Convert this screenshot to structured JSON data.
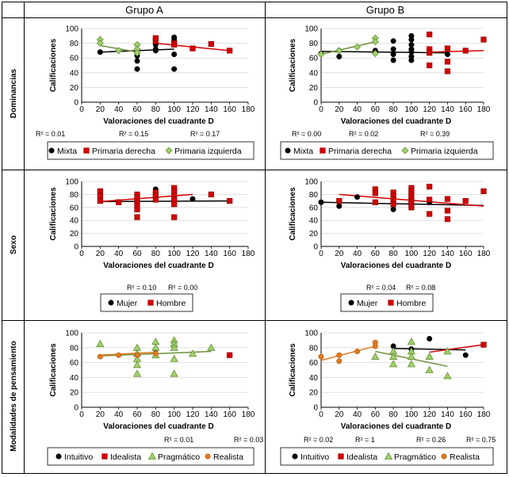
{
  "table": {
    "col_headers": [
      "Grupo A",
      "Grupo B"
    ],
    "row_labels": [
      "Dominancias",
      "Sexo",
      "Modalidades de pensamiento"
    ]
  },
  "colors": {
    "black": "#000000",
    "red": "#d40000",
    "green": "#9fd06b",
    "olive": "#7a9a2a",
    "orange": "#e07a1f"
  },
  "chart_data": [
    {
      "id": "dom_a",
      "type": "scatter",
      "xlabel": "Valoraciones del cuadrante D",
      "ylabel": "Calificaciones",
      "xlim": [
        0,
        180
      ],
      "ylim": [
        0,
        100
      ],
      "xticks": [
        0,
        20,
        40,
        60,
        80,
        100,
        120,
        140,
        160,
        180
      ],
      "yticks": [
        0,
        20,
        40,
        60,
        80,
        100
      ],
      "r2": [
        "R² = 0.01",
        "R² = 0.15",
        "R² = 0.17"
      ],
      "series": [
        {
          "name": "Mixta",
          "marker": "circle",
          "color": "#000000",
          "points": [
            [
              20,
              68
            ],
            [
              60,
              63
            ],
            [
              60,
              56
            ],
            [
              60,
              45
            ],
            [
              80,
              72
            ],
            [
              80,
              70
            ],
            [
              80,
              78
            ],
            [
              100,
              85
            ],
            [
              100,
              88
            ],
            [
              100,
              65
            ],
            [
              100,
              45
            ]
          ],
          "trend": [
            [
              20,
              68
            ],
            [
              100,
              72
            ]
          ]
        },
        {
          "name": "Primaria derecha",
          "marker": "square",
          "color": "#d40000",
          "points": [
            [
              80,
              83
            ],
            [
              80,
              87
            ],
            [
              100,
              80
            ],
            [
              100,
              78
            ],
            [
              120,
              73
            ],
            [
              140,
              79
            ],
            [
              160,
              70
            ]
          ],
          "trend": [
            [
              80,
              80
            ],
            [
              160,
              70
            ]
          ]
        },
        {
          "name": "Primaria izquierda",
          "marker": "diamond",
          "color": "#9fd06b",
          "points": [
            [
              20,
              85
            ],
            [
              20,
              80
            ],
            [
              40,
              70
            ],
            [
              60,
              78
            ],
            [
              60,
              72
            ],
            [
              60,
              67
            ]
          ],
          "trend": [
            [
              20,
              77
            ],
            [
              60,
              68
            ]
          ]
        }
      ]
    },
    {
      "id": "dom_b",
      "type": "scatter",
      "xlabel": "Valoraciones del cuadrante D",
      "ylabel": "Calificaciones",
      "xlim": [
        0,
        180
      ],
      "ylim": [
        0,
        100
      ],
      "xticks": [
        0,
        20,
        40,
        60,
        80,
        100,
        120,
        140,
        160,
        180
      ],
      "yticks": [
        0,
        20,
        40,
        60,
        80,
        100
      ],
      "r2": [
        "R² = 0.00",
        "R² = 0.02",
        "R² = 0.39"
      ],
      "series": [
        {
          "name": "Mixta",
          "marker": "circle",
          "color": "#000000",
          "points": [
            [
              0,
              66
            ],
            [
              20,
              70
            ],
            [
              20,
              62
            ],
            [
              60,
              70
            ],
            [
              80,
              83
            ],
            [
              80,
              72
            ],
            [
              80,
              65
            ],
            [
              80,
              57
            ],
            [
              100,
              90
            ],
            [
              100,
              85
            ],
            [
              100,
              78
            ],
            [
              100,
              72
            ],
            [
              100,
              68
            ],
            [
              100,
              62
            ],
            [
              100,
              57
            ],
            [
              120,
              68
            ],
            [
              140,
              65
            ]
          ],
          "trend": [
            [
              0,
              69
            ],
            [
              140,
              67
            ]
          ]
        },
        {
          "name": "Primaria derecha",
          "marker": "square",
          "color": "#d40000",
          "points": [
            [
              120,
              92
            ],
            [
              120,
              72
            ],
            [
              120,
              67
            ],
            [
              120,
              50
            ],
            [
              140,
              73
            ],
            [
              140,
              55
            ],
            [
              140,
              42
            ],
            [
              160,
              70
            ],
            [
              180,
              85
            ]
          ],
          "trend": [
            [
              120,
              68
            ],
            [
              180,
              70
            ]
          ]
        },
        {
          "name": "Primaria izquierda",
          "marker": "diamond",
          "color": "#9fd06b",
          "points": [
            [
              0,
              65
            ],
            [
              20,
              70
            ],
            [
              40,
              75
            ],
            [
              60,
              87
            ],
            [
              60,
              82
            ],
            [
              60,
              66
            ]
          ],
          "trend": [
            [
              0,
              65
            ],
            [
              60,
              82
            ]
          ]
        }
      ]
    },
    {
      "id": "sexo_a",
      "type": "scatter",
      "xlabel": "Valoraciones del cuadrante D",
      "ylabel": "Calificaciones",
      "xlim": [
        0,
        180
      ],
      "ylim": [
        0,
        100
      ],
      "xticks": [
        0,
        20,
        40,
        60,
        80,
        100,
        120,
        140,
        160,
        180
      ],
      "yticks": [
        0,
        20,
        40,
        60,
        80,
        100
      ],
      "r2": [
        "R² = 0.10",
        "R² = 0.00"
      ],
      "series": [
        {
          "name": "Mujer",
          "marker": "circle",
          "color": "#000000",
          "points": [
            [
              60,
              72
            ],
            [
              80,
              88
            ],
            [
              80,
              75
            ],
            [
              100,
              85
            ],
            [
              100,
              72
            ],
            [
              120,
              73
            ],
            [
              160,
              70
            ]
          ],
          "trend": [
            [
              20,
              69
            ],
            [
              160,
              70
            ]
          ]
        },
        {
          "name": "Hombre",
          "marker": "square",
          "color": "#d40000",
          "points": [
            [
              20,
              85
            ],
            [
              20,
              78
            ],
            [
              20,
              70
            ],
            [
              40,
              68
            ],
            [
              60,
              80
            ],
            [
              60,
              74
            ],
            [
              60,
              70
            ],
            [
              60,
              62
            ],
            [
              60,
              57
            ],
            [
              60,
              45
            ],
            [
              80,
              83
            ],
            [
              80,
              78
            ],
            [
              80,
              72
            ],
            [
              100,
              90
            ],
            [
              100,
              85
            ],
            [
              100,
              78
            ],
            [
              100,
              72
            ],
            [
              100,
              65
            ],
            [
              100,
              45
            ],
            [
              140,
              80
            ],
            [
              160,
              70
            ]
          ],
          "trend": [
            [
              20,
              69
            ],
            [
              120,
              80
            ]
          ]
        }
      ]
    },
    {
      "id": "sexo_b",
      "type": "scatter",
      "xlabel": "Valoraciones del cuadrante D",
      "ylabel": "Calificaciones",
      "xlim": [
        0,
        180
      ],
      "ylim": [
        0,
        100
      ],
      "xticks": [
        0,
        20,
        40,
        60,
        80,
        100,
        120,
        140,
        160,
        180
      ],
      "yticks": [
        0,
        20,
        40,
        60,
        80,
        100
      ],
      "r2": [
        "R² = 0.04",
        "R² = 0.08"
      ],
      "series": [
        {
          "name": "Mujer",
          "marker": "circle",
          "color": "#000000",
          "points": [
            [
              0,
              68
            ],
            [
              20,
              62
            ],
            [
              40,
              76
            ],
            [
              80,
              57
            ],
            [
              100,
              75
            ],
            [
              120,
              68
            ]
          ],
          "trend": [
            [
              0,
              68
            ],
            [
              180,
              63
            ]
          ]
        },
        {
          "name": "Hombre",
          "marker": "square",
          "color": "#d40000",
          "points": [
            [
              20,
              70
            ],
            [
              60,
              88
            ],
            [
              60,
              82
            ],
            [
              60,
              68
            ],
            [
              80,
              83
            ],
            [
              80,
              78
            ],
            [
              80,
              72
            ],
            [
              80,
              65
            ],
            [
              100,
              90
            ],
            [
              100,
              85
            ],
            [
              100,
              80
            ],
            [
              100,
              75
            ],
            [
              100,
              70
            ],
            [
              100,
              65
            ],
            [
              100,
              60
            ],
            [
              120,
              92
            ],
            [
              120,
              72
            ],
            [
              120,
              50
            ],
            [
              140,
              73
            ],
            [
              140,
              55
            ],
            [
              140,
              42
            ],
            [
              160,
              70
            ],
            [
              180,
              85
            ]
          ],
          "trend": [
            [
              20,
              80
            ],
            [
              180,
              62
            ]
          ]
        }
      ]
    },
    {
      "id": "mod_a",
      "type": "scatter",
      "xlabel": "Valoraciones del cuadrante D",
      "ylabel": "Calificaciones",
      "xlim": [
        0,
        180
      ],
      "ylim": [
        0,
        100
      ],
      "xticks": [
        0,
        20,
        40,
        60,
        80,
        100,
        120,
        140,
        160,
        180
      ],
      "yticks": [
        0,
        20,
        40,
        60,
        80,
        100
      ],
      "r2": [
        "R² = 0.01",
        "R² = 0.03"
      ],
      "series": [
        {
          "name": "Intuitivo",
          "marker": "circle",
          "color": "#000000",
          "points": [
            [
              80,
              78
            ],
            [
              100,
              82
            ]
          ],
          "trend": null
        },
        {
          "name": "Idealista",
          "marker": "square",
          "color": "#d40000",
          "points": [
            [
              160,
              70
            ]
          ],
          "trend": null
        },
        {
          "name": "Pragmático",
          "marker": "triangle",
          "color": "#9fd06b",
          "points": [
            [
              20,
              85
            ],
            [
              60,
              80
            ],
            [
              60,
              72
            ],
            [
              60,
              65
            ],
            [
              60,
              57
            ],
            [
              60,
              45
            ],
            [
              80,
              88
            ],
            [
              80,
              80
            ],
            [
              80,
              70
            ],
            [
              100,
              90
            ],
            [
              100,
              85
            ],
            [
              100,
              80
            ],
            [
              100,
              65
            ],
            [
              100,
              45
            ],
            [
              120,
              72
            ],
            [
              140,
              80
            ]
          ],
          "trend": [
            [
              20,
              69
            ],
            [
              140,
              75
            ]
          ]
        },
        {
          "name": "Realista",
          "marker": "circle",
          "color": "#e07a1f",
          "points": [
            [
              20,
              68
            ],
            [
              40,
              70
            ],
            [
              60,
              70
            ],
            [
              80,
              72
            ]
          ],
          "trend": [
            [
              20,
              70
            ],
            [
              80,
              74
            ]
          ]
        }
      ]
    },
    {
      "id": "mod_b",
      "type": "scatter",
      "xlabel": "Valoraciones del cuadrante D",
      "ylabel": "Calificaciones",
      "xlim": [
        0,
        180
      ],
      "ylim": [
        0,
        100
      ],
      "xticks": [
        0,
        20,
        40,
        60,
        80,
        100,
        120,
        140,
        160,
        180
      ],
      "yticks": [
        0,
        20,
        40,
        60,
        80,
        100
      ],
      "r2": [
        "R² = 0.02",
        "R² = 1",
        "R² = 0.26",
        "R² = 0.75"
      ],
      "series": [
        {
          "name": "Intuitivo",
          "marker": "circle",
          "color": "#000000",
          "points": [
            [
              80,
              82
            ],
            [
              100,
              78
            ],
            [
              120,
              92
            ],
            [
              160,
              70
            ]
          ],
          "trend": [
            [
              80,
              79
            ],
            [
              160,
              77
            ]
          ]
        },
        {
          "name": "Idealista",
          "marker": "square",
          "color": "#d40000",
          "points": [
            [
              180,
              84
            ]
          ],
          "trend": [
            [
              120,
              74
            ],
            [
              180,
              84
            ]
          ]
        },
        {
          "name": "Pragmático",
          "marker": "triangle",
          "color": "#9fd06b",
          "points": [
            [
              60,
              68
            ],
            [
              80,
              75
            ],
            [
              80,
              68
            ],
            [
              80,
              58
            ],
            [
              100,
              88
            ],
            [
              100,
              75
            ],
            [
              100,
              68
            ],
            [
              100,
              58
            ],
            [
              120,
              68
            ],
            [
              120,
              50
            ],
            [
              140,
              75
            ],
            [
              140,
              42
            ]
          ],
          "trend": [
            [
              60,
              75
            ],
            [
              140,
              55
            ]
          ]
        },
        {
          "name": "Realista",
          "marker": "circle",
          "color": "#e07a1f",
          "points": [
            [
              0,
              68
            ],
            [
              20,
              70
            ],
            [
              20,
              62
            ],
            [
              40,
              75
            ],
            [
              60,
              87
            ],
            [
              60,
              82
            ]
          ],
          "trend": [
            [
              0,
              63
            ],
            [
              60,
              82
            ]
          ]
        }
      ]
    }
  ]
}
